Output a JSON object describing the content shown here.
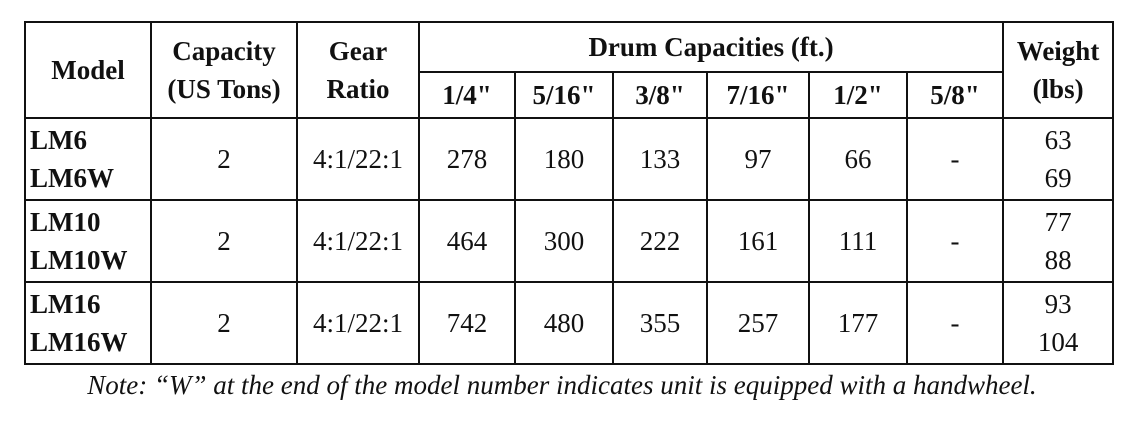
{
  "table": {
    "header": {
      "model": "Model",
      "capacity": [
        "Capacity",
        "(US Tons)"
      ],
      "gear": [
        "Gear",
        "Ratio"
      ],
      "drum": "Drum Capacities (ft.)",
      "drum_sizes": [
        "1/4\"",
        "5/16\"",
        "3/8\"",
        "7/16\"",
        "1/2\"",
        "5/8\""
      ],
      "weight": [
        "Weight",
        "(lbs)"
      ]
    },
    "rows": [
      {
        "models": [
          "LM6",
          "LM6W"
        ],
        "capacity": 2,
        "gear": "4:1/22:1",
        "drums": [
          278,
          180,
          133,
          97,
          66,
          "-"
        ],
        "weights": [
          63,
          69
        ]
      },
      {
        "models": [
          "LM10",
          "LM10W"
        ],
        "capacity": 2,
        "gear": "4:1/22:1",
        "drums": [
          464,
          300,
          222,
          161,
          111,
          "-"
        ],
        "weights": [
          77,
          88
        ]
      },
      {
        "models": [
          "LM16",
          "LM16W"
        ],
        "capacity": 2,
        "gear": "4:1/22:1",
        "drums": [
          742,
          480,
          355,
          257,
          177,
          "-"
        ],
        "weights": [
          93,
          104
        ]
      }
    ],
    "note": "Note: “W” at the end of the model number indicates unit is equipped with a handwheel."
  }
}
